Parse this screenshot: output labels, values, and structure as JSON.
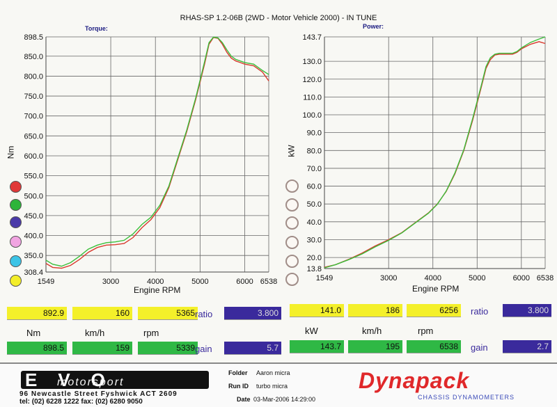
{
  "title": "RHAS-SP 1.2-06B  (2WD - Motor Vehicle 2000) - IN TUNE",
  "chart_data": [
    {
      "type": "line",
      "subtitle": "Torque:",
      "xlabel": "Engine RPM",
      "ylabel": "Nm",
      "xlim": [
        1549,
        6538
      ],
      "ylim": [
        308.4,
        898.5
      ],
      "x_ticks": [
        "1549",
        "3000",
        "4000",
        "5000",
        "6000",
        "6538"
      ],
      "y_ticks": [
        "898.5",
        "850.0",
        "800.0",
        "750.0",
        "700.0",
        "650.0",
        "600.0",
        "550.0",
        "500.0",
        "450.0",
        "400.0",
        "350.0",
        "308.4"
      ],
      "grid": true,
      "series": [
        {
          "color": "#d83a2e",
          "x": [
            1549,
            1700,
            1900,
            2100,
            2300,
            2500,
            2700,
            2900,
            3100,
            3300,
            3500,
            3700,
            3900,
            4100,
            4300,
            4500,
            4700,
            4900,
            5100,
            5200,
            5300,
            5400,
            5500,
            5600,
            5700,
            5800,
            5900,
            6000,
            6200,
            6400,
            6538
          ],
          "y": [
            330,
            320,
            318,
            325,
            340,
            358,
            370,
            376,
            377,
            380,
            395,
            420,
            440,
            470,
            520,
            590,
            660,
            740,
            830,
            880,
            897,
            895,
            880,
            860,
            845,
            838,
            834,
            830,
            826,
            810,
            788
          ]
        },
        {
          "color": "#3bbf3b",
          "x": [
            1549,
            1700,
            1900,
            2100,
            2300,
            2500,
            2700,
            2900,
            3100,
            3300,
            3500,
            3700,
            3900,
            4100,
            4300,
            4500,
            4700,
            4900,
            5100,
            5200,
            5300,
            5400,
            5500,
            5600,
            5700,
            5800,
            5900,
            6000,
            6200,
            6400,
            6538
          ],
          "y": [
            338,
            328,
            323,
            332,
            348,
            366,
            376,
            382,
            384,
            388,
            404,
            428,
            446,
            476,
            524,
            594,
            664,
            744,
            836,
            884,
            898,
            896,
            884,
            866,
            850,
            842,
            838,
            834,
            830,
            814,
            804
          ]
        }
      ]
    },
    {
      "type": "line",
      "subtitle": "Power:",
      "xlabel": "Engine RPM",
      "ylabel": "kW",
      "xlim": [
        1549,
        6538
      ],
      "ylim": [
        13.8,
        143.7
      ],
      "x_ticks": [
        "1549",
        "3000",
        "4000",
        "5000",
        "6000",
        "6538"
      ],
      "y_ticks": [
        "143.7",
        "130.0",
        "120.0",
        "110.0",
        "100.0",
        "90.0",
        "80.0",
        "70.0",
        "60.0",
        "50.0",
        "40.0",
        "30.0",
        "20.0",
        "13.8"
      ],
      "grid": true,
      "series": [
        {
          "color": "#d83a2e",
          "x": [
            1549,
            1800,
            2100,
            2400,
            2700,
            3000,
            3300,
            3600,
            3900,
            4100,
            4300,
            4500,
            4700,
            4900,
            5100,
            5200,
            5300,
            5400,
            5500,
            5600,
            5700,
            5800,
            5900,
            6000,
            6200,
            6400,
            6538
          ],
          "y": [
            14.5,
            16,
            19,
            22.5,
            26.5,
            30,
            34,
            39.5,
            45,
            50,
            57,
            67,
            80,
            97,
            116,
            126,
            131,
            133.5,
            134,
            134,
            134,
            134,
            135,
            137,
            139.5,
            141,
            140
          ]
        },
        {
          "color": "#3bbf3b",
          "x": [
            1549,
            1800,
            2100,
            2400,
            2700,
            3000,
            3300,
            3600,
            3900,
            4100,
            4300,
            4500,
            4700,
            4900,
            5100,
            5200,
            5300,
            5400,
            5500,
            5600,
            5700,
            5800,
            5900,
            6000,
            6200,
            6400,
            6538
          ],
          "y": [
            14.2,
            16,
            18.8,
            22,
            26,
            29.6,
            33.8,
            39.3,
            44.8,
            49.8,
            57.2,
            67.5,
            80.5,
            98,
            117,
            127,
            132,
            134,
            134.5,
            134.5,
            134.5,
            134.5,
            135.5,
            137.5,
            140.5,
            142.5,
            143.7
          ]
        }
      ]
    }
  ],
  "legend_left": [
    {
      "name": "red",
      "color": "#e03838"
    },
    {
      "name": "green",
      "color": "#2eb43a"
    },
    {
      "name": "blue",
      "color": "#4a3aa8"
    },
    {
      "name": "pink",
      "color": "#f1a4e1"
    },
    {
      "name": "cyan",
      "color": "#3cc4e6"
    },
    {
      "name": "yellow",
      "color": "#f3ee28"
    }
  ],
  "readout_left": {
    "row1": [
      "892.9",
      "160",
      "5365"
    ],
    "units": [
      "Nm",
      "km/h",
      "rpm"
    ],
    "row2": [
      "898.5",
      "159",
      "5339"
    ],
    "ratio_label": "ratio",
    "ratio_value": "3.800",
    "gain_label": "gain",
    "gain_value": "5.7"
  },
  "readout_right": {
    "row1": [
      "141.0",
      "186",
      "6256"
    ],
    "units": [
      "kW",
      "km/h",
      "rpm"
    ],
    "row2": [
      "143.7",
      "195",
      "6538"
    ],
    "ratio_label": "ratio",
    "ratio_value": "3.800",
    "gain_label": "gain",
    "gain_value": "2.7"
  },
  "footer": {
    "logo_text": "EVO",
    "logo_sub": "motorsport",
    "address": "96 Newcastle Street  Fyshwick  ACT 2609",
    "contact": "tel: (02) 6228 1222    fax: (02) 6280 9050",
    "folder_label": "Folder",
    "folder_value": "Aaron micra",
    "runid_label": "Run ID",
    "runid_value": "turbo micra",
    "date_label": "Date",
    "date_value": "03-Mar-2006  14:29:00",
    "brand": "Dynapack",
    "brand_sub": "CHASSIS  DYNAMOMETERS"
  }
}
